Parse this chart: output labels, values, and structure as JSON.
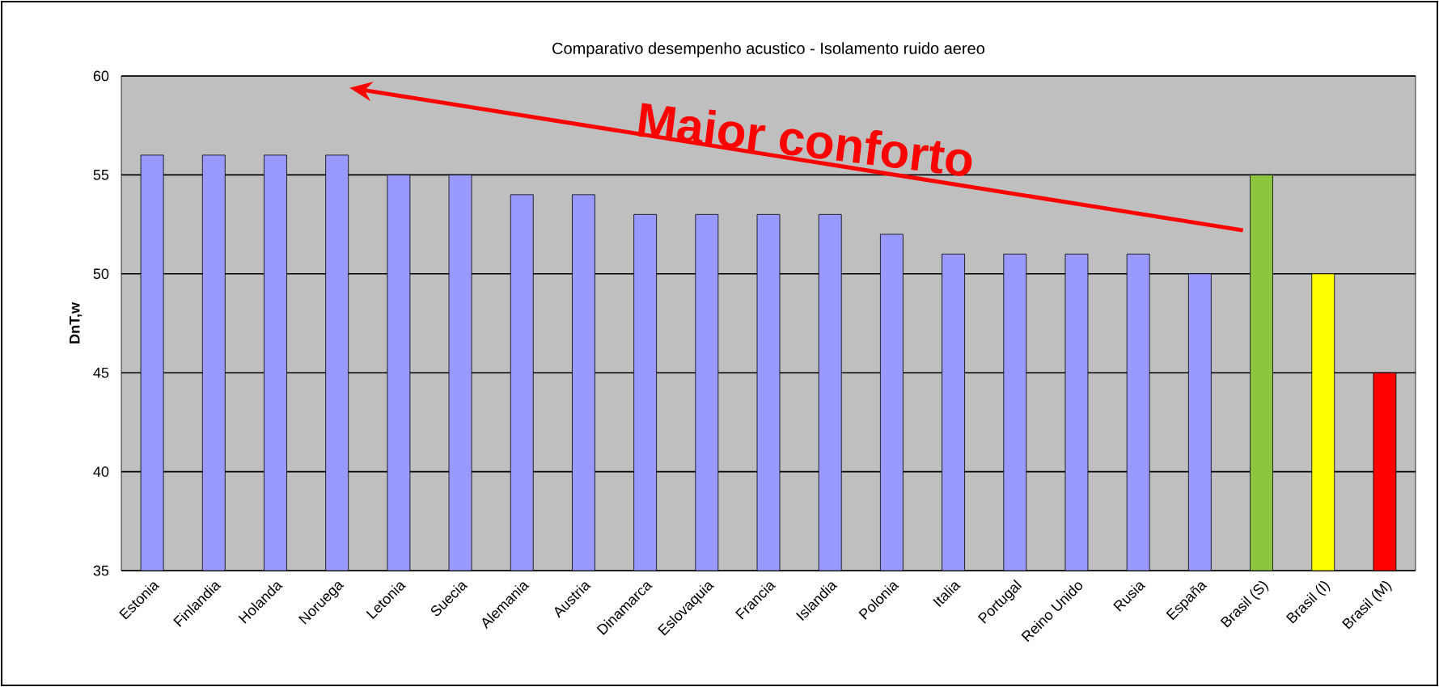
{
  "chart_data": {
    "type": "bar",
    "title": "Comparativo desempenho acustico - Isolamento ruido aereo",
    "ylabel": "DnT,w",
    "categories": [
      "Estonia",
      "Finlandia",
      "Holanda",
      "Noruega",
      "Letonia",
      "Suecia",
      "Alemania",
      "Austria",
      "Dinamarca",
      "Eslovaquia",
      "Francia",
      "Islandia",
      "Polonia",
      "Italia",
      "Portugal",
      "Reino Unido",
      "Rusia",
      "España",
      "Brasil (S)",
      "Brasil (I)",
      "Brasil (M)"
    ],
    "values": [
      56,
      56,
      56,
      56,
      55,
      55,
      54,
      54,
      53,
      53,
      53,
      53,
      52,
      51,
      51,
      51,
      51,
      50,
      55,
      50,
      45
    ],
    "colors": [
      "#9999ff",
      "#9999ff",
      "#9999ff",
      "#9999ff",
      "#9999ff",
      "#9999ff",
      "#9999ff",
      "#9999ff",
      "#9999ff",
      "#9999ff",
      "#9999ff",
      "#9999ff",
      "#9999ff",
      "#9999ff",
      "#9999ff",
      "#9999ff",
      "#9999ff",
      "#9999ff",
      "#8cc63f",
      "#ffff00",
      "#ff0000"
    ],
    "ylim": [
      35,
      60
    ],
    "yticks": [
      35,
      40,
      45,
      50,
      55,
      60
    ],
    "grid": "y",
    "annotations": [
      "Maior conforto"
    ]
  }
}
